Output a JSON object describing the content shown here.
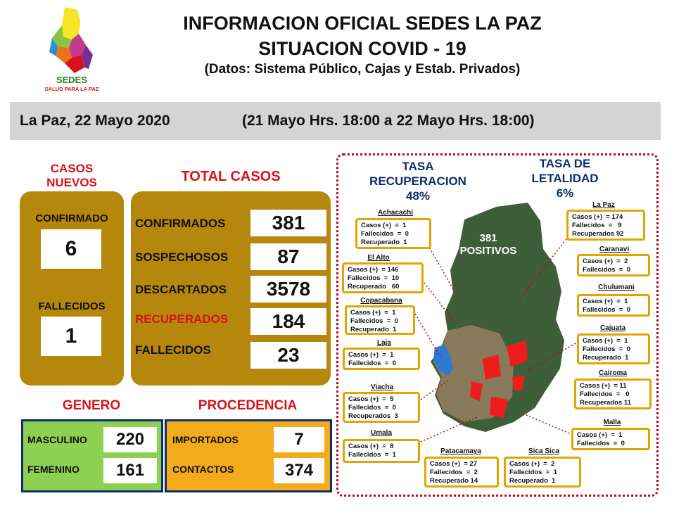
{
  "header": {
    "logo_name": "SEDES",
    "logo_tagline": "SALUD PARA LA PAZ",
    "title_line1": "INFORMACION OFICIAL SEDES LA PAZ",
    "title_line2": "SITUACION  COVID - 19",
    "title_line3": "(Datos: Sistema Público, Cajas y Estab. Privados)"
  },
  "dateband": {
    "date": "La Paz, 22 Mayo  2020",
    "range": "(21 Mayo Hrs. 18:00 a 22 Mayo Hrs. 18:00)"
  },
  "casos_nuevos": {
    "heading_line1": "CASOS",
    "heading_line2": "NUEVOS",
    "confirmado_label": "CONFIRMADO",
    "confirmado_value": "6",
    "fallecidos_label": "FALLECIDOS",
    "fallecidos_value": "1"
  },
  "total_casos": {
    "heading": "TOTAL CASOS",
    "rows": [
      {
        "label": "CONFIRMADOS",
        "value": "381"
      },
      {
        "label": "SOSPECHOSOS",
        "value": "87"
      },
      {
        "label": "DESCARTADOS",
        "value": "3578"
      },
      {
        "label": "RECUPERADOS",
        "value": "184"
      },
      {
        "label": "FALLECIDOS",
        "value": "23"
      }
    ]
  },
  "genero": {
    "heading": "GENERO",
    "masculino_label": "MASCULINO",
    "masculino_value": "220",
    "femenino_label": "FEMENINO",
    "femenino_value": "161"
  },
  "procedencia": {
    "heading": "PROCEDENCIA",
    "importados_label": "IMPORTADOS",
    "importados_value": "7",
    "contactos_label": "CONTACTOS",
    "contactos_value": "374"
  },
  "map": {
    "tasa_recuperacion_line1": "TASA",
    "tasa_recuperacion_line2": "RECUPERACION",
    "tasa_recuperacion_value": "48%",
    "tasa_letalidad_line1": "TASA  DE",
    "tasa_letalidad_line2": "LETALIDAD",
    "tasa_letalidad_value": "6%",
    "positivos_value": "381",
    "positivos_label": "POSITIVOS",
    "regions": [
      {
        "name": "Achacachi",
        "lines": [
          "Casos (+)  =  1",
          "Fallecidos  =  0",
          "Recuperado  1"
        ]
      },
      {
        "name": "El Alto",
        "lines": [
          "Casos (+)  = 146",
          "Fallecidos  =  10",
          "Recuperado   60"
        ]
      },
      {
        "name": "Copacabana",
        "lines": [
          "Casos (+)  =  1",
          "Fallecidos  =  0",
          "Recuperado  1"
        ]
      },
      {
        "name": "Laja",
        "lines": [
          "Casos (+)  =  1",
          "Fallecidos  =  0"
        ]
      },
      {
        "name": "Viacha",
        "lines": [
          "Casos (+)  =  5",
          "Fallecidos  =  0",
          "Recuperados  3"
        ]
      },
      {
        "name": "Umala",
        "lines": [
          "Casos (+)  =  8",
          "Fallecidos  =  1"
        ]
      },
      {
        "name": "Patacamaya",
        "lines": [
          "Casos (+)  = 27",
          "Fallecidos  =  2",
          "Recuperado 14"
        ]
      },
      {
        "name": "Sica Sica",
        "lines": [
          "Casos (+)  =  2",
          "Fallecidos  =  1",
          "Recuperado  1"
        ]
      },
      {
        "name": "La Paz",
        "lines": [
          "Casos (+)  = 174",
          "Fallecidos  =   9",
          "Recuperados 92"
        ]
      },
      {
        "name": "Caranavi",
        "lines": [
          "Casos (+)  =  2",
          "Fallecidos  =  0"
        ]
      },
      {
        "name": "Chulumani",
        "lines": [
          "Casos (+)  =  1",
          "Fallecidos  =  0"
        ]
      },
      {
        "name": "Cajuata",
        "lines": [
          "Casos (+)  =  1",
          "Fallecidos  =  0",
          "Recuperado  1"
        ]
      },
      {
        "name": "Cairoma",
        "lines": [
          "Casos (+)  = 11",
          "Fallecidos  =   0",
          "Recuperados 11"
        ]
      },
      {
        "name": "Malla",
        "lines": [
          "Casos (+)  =  1",
          "Fallecidos  =  0"
        ]
      }
    ]
  },
  "colors": {
    "accent_red": "#d8111a",
    "gold": "#b5880d",
    "green_panel": "#8ed052",
    "orange_panel": "#f2ab1a",
    "navy": "#0c2d6b"
  }
}
